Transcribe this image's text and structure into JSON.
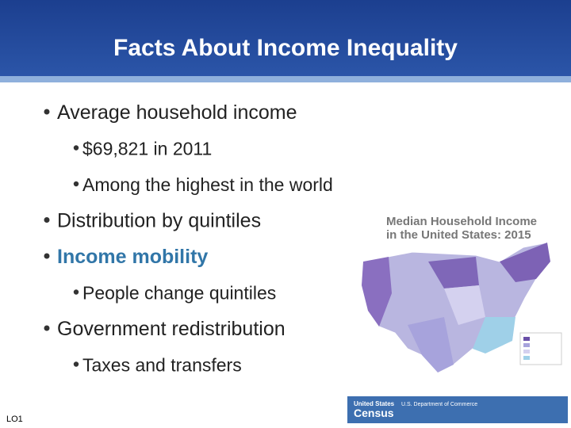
{
  "header": {
    "title": "Facts About Income Inequality"
  },
  "bullets": [
    {
      "level": 1,
      "text": "Average household income",
      "emphasis": false
    },
    {
      "level": 2,
      "text": "$69,821 in 2011",
      "emphasis": false
    },
    {
      "level": 2,
      "text": "Among the highest in the world",
      "emphasis": false
    },
    {
      "level": 1,
      "text": "Distribution by quintiles",
      "emphasis": false
    },
    {
      "level": 1,
      "text": "Income mobility",
      "emphasis": true
    },
    {
      "level": 2,
      "text": "People change quintiles",
      "emphasis": false
    },
    {
      "level": 1,
      "text": "Government redistribution",
      "emphasis": false
    },
    {
      "level": 2,
      "text": "Taxes and transfers",
      "emphasis": false
    }
  ],
  "map": {
    "title": [
      "Median Household Income",
      "in the United States: 2015"
    ],
    "logo": [
      "United States",
      "Census"
    ],
    "agency": "U.S. Department of Commerce"
  },
  "footer": {
    "label": "LO1"
  }
}
